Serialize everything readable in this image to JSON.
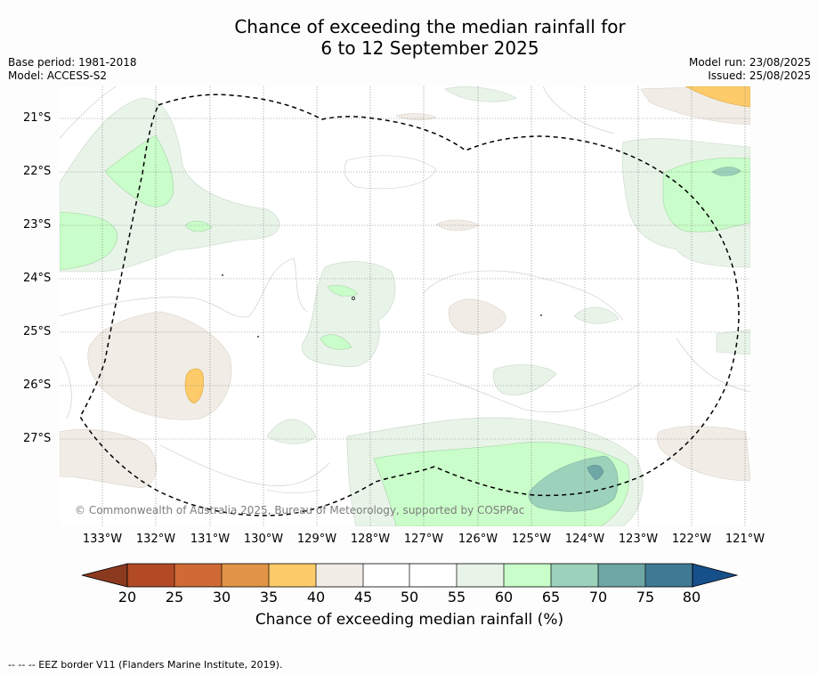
{
  "title_line1": "Chance of exceeding the median rainfall for",
  "title_line2": "6 to 12 September 2025",
  "meta": {
    "base_period": "Base period: 1981-2018",
    "model": "Model: ACCESS-S2",
    "model_run": "Model run: 23/08/2025",
    "issued": "Issued: 25/08/2025"
  },
  "latitude_labels": [
    "21°S",
    "22°S",
    "23°S",
    "24°S",
    "25°S",
    "26°S",
    "27°S"
  ],
  "longitude_labels": [
    "133°W",
    "132°W",
    "131°W",
    "130°W",
    "129°W",
    "128°W",
    "127°W",
    "126°W",
    "125°W",
    "124°W",
    "123°W",
    "122°W",
    "121°W"
  ],
  "copyright": "© Commonwealth of Australia 2025, Bureau of Meteorology, supported by COSPPac",
  "colorbar": {
    "ticks": [
      "20",
      "25",
      "30",
      "35",
      "40",
      "45",
      "50",
      "55",
      "60",
      "65",
      "70",
      "75",
      "80"
    ],
    "title": "Chance of exceeding median rainfall (%)",
    "colors": [
      "#8b3a1f",
      "#b24a26",
      "#cf6a35",
      "#e29448",
      "#fdcb69",
      "#f1ede6",
      "#ffffff",
      "#ffffff",
      "#e9f4e9",
      "#c9fdc9",
      "#9cd2bb",
      "#6fa6a6",
      "#3f7a95",
      "#16508a"
    ]
  },
  "footer": "--  --  -- EEZ border V11 (Flanders Marine Institute, 2019)."
}
